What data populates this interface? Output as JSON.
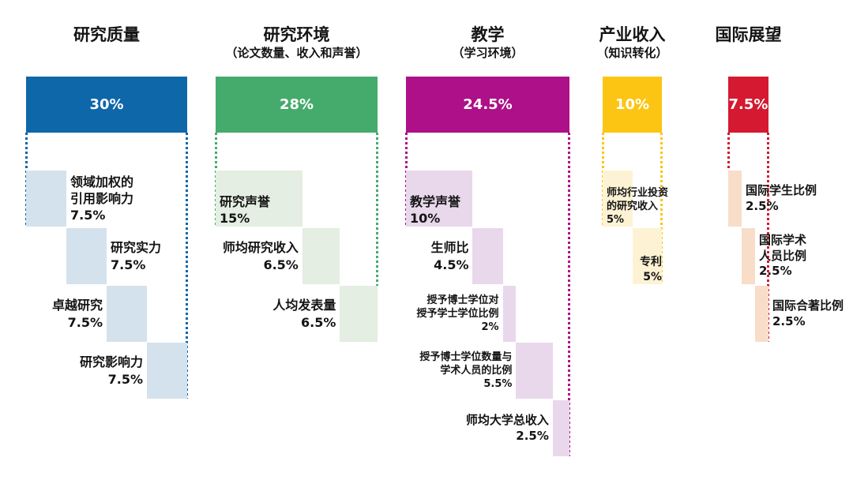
{
  "chart_data": {
    "type": "waterfall",
    "title": "",
    "legend": "none",
    "grid": false,
    "columns": [
      {
        "id": "research-quality",
        "title": "研究质量",
        "subtitle": "",
        "weight": 30,
        "weight_label": "30%",
        "color": "#0e67a8",
        "light_color": "#d4e2ed",
        "subs": [
          {
            "lines": [
              "领域加权的",
              "引用影响力"
            ],
            "value": 7.5,
            "value_label": "7.5%",
            "label_pos": "right",
            "label_size": 16
          },
          {
            "lines": [
              "研究实力"
            ],
            "value": 7.5,
            "value_label": "7.5%",
            "label_pos": "right",
            "label_size": 16
          },
          {
            "lines": [
              "卓越研究"
            ],
            "value": 7.5,
            "value_label": "7.5%",
            "label_pos": "left",
            "label_size": 16
          },
          {
            "lines": [
              "研究影响力"
            ],
            "value": 7.5,
            "value_label": "7.5%",
            "label_pos": "left",
            "label_size": 16
          }
        ]
      },
      {
        "id": "research-environment",
        "title": "研究环境",
        "subtitle": "（论文数量、收入和声誉）",
        "weight": 28,
        "weight_label": "28%",
        "color": "#45ab6c",
        "light_color": "#e4eee2",
        "subs": [
          {
            "lines": [
              "研究声誉"
            ],
            "value": 15,
            "value_label": "15%",
            "label_pos": "inside",
            "label_size": 16
          },
          {
            "lines": [
              "师均研究收入"
            ],
            "value": 6.5,
            "value_label": "6.5%",
            "label_pos": "left",
            "label_size": 16
          },
          {
            "lines": [
              "人均发表量"
            ],
            "value": 6.5,
            "value_label": "6.5%",
            "label_pos": "left",
            "label_size": 16
          }
        ]
      },
      {
        "id": "teaching",
        "title": "教学",
        "subtitle": "（学习环境）",
        "weight": 24.5,
        "weight_label": "24.5%",
        "color": "#ad1088",
        "light_color": "#e9d7ec",
        "subs": [
          {
            "lines": [
              "教学声誉"
            ],
            "value": 10,
            "value_label": "10%",
            "label_pos": "inside",
            "label_size": 16
          },
          {
            "lines": [
              "生师比"
            ],
            "value": 4.5,
            "value_label": "4.5%",
            "label_pos": "left",
            "label_size": 16
          },
          {
            "lines": [
              "授予博士学位对",
              "授予学士学位比例"
            ],
            "value": 2,
            "value_label": "2%",
            "label_pos": "left",
            "label_size": 13
          },
          {
            "lines": [
              "授予博士学位数量与",
              "学术人员的比例"
            ],
            "value": 5.5,
            "value_label": "5.5%",
            "label_pos": "left",
            "label_size": 13
          },
          {
            "lines": [
              "师均大学总收入"
            ],
            "value": 2.5,
            "value_label": "2.5%",
            "label_pos": "left",
            "label_size": 15
          }
        ]
      },
      {
        "id": "industry-income",
        "title": "产业收入",
        "subtitle": "（知识转化）",
        "weight": 10,
        "weight_label": "10%",
        "color": "#fdc513",
        "light_color": "#fdf3d4",
        "subs": [
          {
            "lines": [
              "师均行业投资",
              "的研究收入"
            ],
            "value": 5,
            "value_label": "5%",
            "label_pos": "inside",
            "label_size": 13
          },
          {
            "lines": [
              "专利"
            ],
            "value": 5,
            "value_label": "5%",
            "label_pos": "inside-right",
            "label_size": 14
          }
        ]
      },
      {
        "id": "international-outlook",
        "title": "国际展望",
        "subtitle": "",
        "weight": 7.5,
        "weight_label": "7.5%",
        "color": "#d41930",
        "light_color": "#f8ddc9",
        "subs": [
          {
            "lines": [
              "国际学生比例"
            ],
            "value": 2.5,
            "value_label": "2.5%",
            "label_pos": "right",
            "label_size": 15
          },
          {
            "lines": [
              "国际学术",
              "人员比例"
            ],
            "value": 2.5,
            "value_label": "2.5%",
            "label_pos": "right",
            "label_size": 15
          },
          {
            "lines": [
              "国际合著比例"
            ],
            "value": 2.5,
            "value_label": "2.5%",
            "label_pos": "right",
            "label_size": 15
          }
        ]
      }
    ]
  }
}
